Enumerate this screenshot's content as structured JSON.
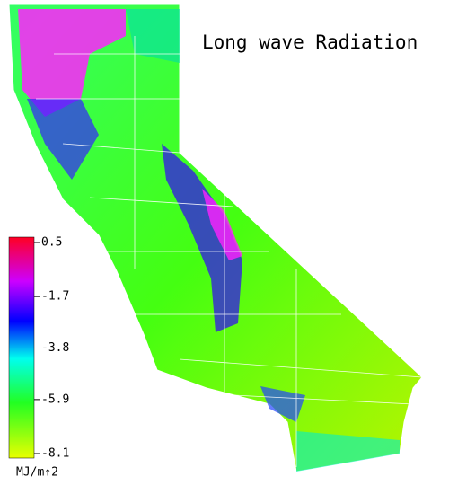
{
  "title": "Long wave Radiation",
  "colorbar": {
    "ticks": [
      0.5,
      -1.7,
      -3.8,
      -5.9,
      -8.1
    ],
    "unit": "MJ/m↑2"
  }
}
